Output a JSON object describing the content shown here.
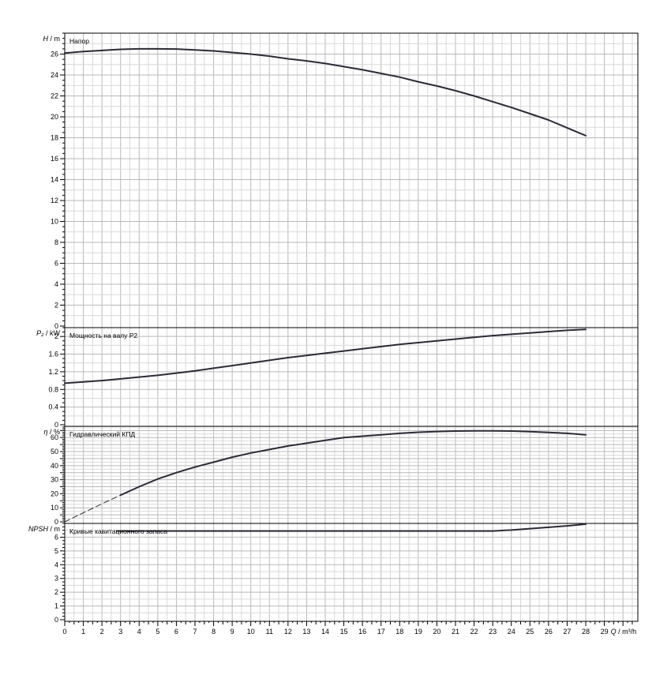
{
  "chart_data": [
    {
      "type": "line",
      "title": "Напор",
      "axis_symbol": "H",
      "axis_unit": "/ m",
      "ylim": [
        0,
        28
      ],
      "yticks": [
        0,
        2,
        4,
        6,
        8,
        10,
        12,
        14,
        16,
        18,
        20,
        22,
        24,
        26
      ],
      "xlim": [
        0,
        30
      ],
      "grid": true,
      "series": [
        {
          "x": [
            0,
            1,
            2,
            3,
            4,
            5,
            6,
            7,
            8,
            9,
            10,
            11,
            12,
            13,
            14,
            15,
            16,
            17,
            18,
            19,
            20,
            21,
            22,
            23,
            24,
            25,
            26,
            27,
            28
          ],
          "values": [
            26.1,
            26.25,
            26.35,
            26.45,
            26.5,
            26.5,
            26.48,
            26.4,
            26.3,
            26.15,
            26.0,
            25.8,
            25.55,
            25.35,
            25.1,
            24.8,
            24.5,
            24.15,
            23.8,
            23.35,
            22.95,
            22.5,
            22.0,
            21.45,
            20.9,
            20.3,
            19.7,
            18.95,
            18.2
          ]
        }
      ]
    },
    {
      "type": "line",
      "title": "Мощность на валу P2",
      "axis_symbol": "P₂",
      "axis_unit": "/ kW",
      "ylim": [
        0,
        2.2
      ],
      "yticks": [
        0,
        0.4,
        0.8,
        1.2,
        1.6,
        2
      ],
      "yticklabels": [
        "0",
        "0.4",
        "0.8",
        "1.2",
        "1.6",
        "2"
      ],
      "xlim": [
        0,
        30
      ],
      "grid": true,
      "series": [
        {
          "x": [
            0,
            1,
            2,
            3,
            4,
            5,
            6,
            7,
            8,
            9,
            10,
            11,
            12,
            13,
            14,
            15,
            16,
            17,
            18,
            19,
            20,
            21,
            22,
            23,
            24,
            25,
            26,
            27,
            28
          ],
          "values": [
            0.94,
            0.97,
            1.0,
            1.04,
            1.08,
            1.12,
            1.17,
            1.22,
            1.28,
            1.34,
            1.4,
            1.46,
            1.52,
            1.57,
            1.62,
            1.67,
            1.72,
            1.77,
            1.82,
            1.86,
            1.9,
            1.94,
            1.98,
            2.02,
            2.05,
            2.08,
            2.11,
            2.14,
            2.16
          ]
        }
      ]
    },
    {
      "type": "line",
      "title": "Гидравлический КПД",
      "axis_symbol": "η",
      "axis_unit": "/ %",
      "ylim": [
        0,
        68
      ],
      "yticks": [
        0,
        5,
        10,
        15,
        20,
        25,
        30,
        35,
        40,
        45,
        50,
        55,
        60,
        65
      ],
      "yticklabels": [
        "0",
        "",
        "10",
        "",
        "20",
        "",
        "30",
        "",
        "40",
        "",
        "50",
        "",
        "60",
        ""
      ],
      "xlim": [
        0,
        30
      ],
      "grid": true,
      "series": [
        {
          "style": "dashed",
          "x": [
            0,
            1,
            2,
            3
          ],
          "values": [
            0,
            6.5,
            12.8,
            19
          ]
        },
        {
          "style": "solid",
          "x": [
            3,
            4,
            5,
            6,
            7,
            8,
            9,
            10,
            11,
            12,
            13,
            14,
            15,
            16,
            17,
            18,
            19,
            20,
            21,
            22,
            23,
            24,
            25,
            26,
            27,
            28
          ],
          "values": [
            19,
            25,
            30.5,
            35,
            39,
            42.5,
            46,
            49,
            51.5,
            54,
            56,
            58,
            60,
            61,
            62,
            63,
            63.8,
            64.3,
            64.6,
            64.8,
            64.8,
            64.6,
            64.2,
            63.7,
            63,
            62
          ]
        }
      ]
    },
    {
      "type": "line",
      "title": "Кривые кавитационного запаса",
      "axis_symbol": "NPSH",
      "axis_unit": "/ m",
      "ylim": [
        0,
        7
      ],
      "yticks": [
        0,
        1,
        2,
        3,
        4,
        5,
        6
      ],
      "xlim": [
        0,
        30
      ],
      "grid": true,
      "series": [
        {
          "x": [
            2.8,
            4,
            6,
            8,
            10,
            12,
            14,
            16,
            18,
            20,
            22,
            23,
            24,
            25,
            26,
            27,
            28
          ],
          "values": [
            6.45,
            6.45,
            6.45,
            6.45,
            6.45,
            6.45,
            6.45,
            6.45,
            6.45,
            6.45,
            6.45,
            6.45,
            6.52,
            6.62,
            6.72,
            6.82,
            6.95
          ]
        }
      ]
    }
  ],
  "x_axis": {
    "ticks": [
      0,
      1,
      2,
      3,
      4,
      5,
      6,
      7,
      8,
      9,
      10,
      11,
      12,
      13,
      14,
      15,
      16,
      17,
      18,
      19,
      20,
      21,
      22,
      23,
      24,
      25,
      26,
      27,
      28,
      29
    ],
    "symbol": "Q",
    "unit": "/ m³/h"
  }
}
